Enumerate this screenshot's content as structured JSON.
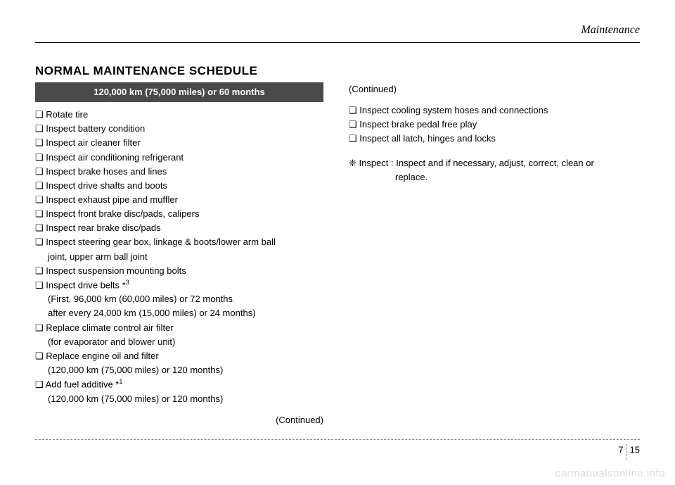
{
  "header": {
    "section": "Maintenance"
  },
  "title": "NORMAL MAINTENANCE SCHEDULE",
  "left": {
    "interval": "120,000 km (75,000 miles) or 60 months",
    "items": [
      {
        "text": "❑ Rotate tire"
      },
      {
        "text": "❑ Inspect battery condition"
      },
      {
        "text": "❑ Inspect air cleaner filter"
      },
      {
        "text": "❑ Inspect air conditioning refrigerant"
      },
      {
        "text": "❑ Inspect brake hoses and lines"
      },
      {
        "text": "❑ Inspect drive shafts and boots"
      },
      {
        "text": "❑ Inspect exhaust pipe and muffler"
      },
      {
        "text": "❑ Inspect front brake disc/pads, calipers"
      },
      {
        "text": "❑ Inspect rear brake disc/pads"
      },
      {
        "text": "❑ Inspect steering gear box, linkage & boots/lower arm ball"
      },
      {
        "text": "joint, upper arm ball joint",
        "sub": true
      },
      {
        "text": "❑ Inspect suspension mounting bolts"
      },
      {
        "text": "❑ Inspect drive belts *",
        "sup": "3"
      },
      {
        "text": "(First, 96,000 km (60,000 miles) or 72 months",
        "sub": true
      },
      {
        "text": " after every 24,000 km (15,000 miles) or 24 months)",
        "sub": true
      },
      {
        "text": "❑ Replace climate control air filter"
      },
      {
        "text": "(for evaporator and blower unit)",
        "sub": true
      },
      {
        "text": "❑ Replace engine oil and filter"
      },
      {
        "text": "(120,000 km (75,000 miles) or 120 months)",
        "sub": true
      },
      {
        "text": "❑ Add fuel additive *",
        "sup": "1"
      },
      {
        "text": "(120,000 km (75,000 miles) or 120 months)",
        "sub": true
      }
    ],
    "continued": "(Continued)"
  },
  "right": {
    "continued_top": "(Continued)",
    "items": [
      {
        "text": "❑ Inspect cooling system hoses and connections"
      },
      {
        "text": "❑ Inspect brake pedal free play"
      },
      {
        "text": "❑ Inspect all latch, hinges and locks"
      }
    ],
    "note_lead": "❈ Inspect : Inspect and if necessary, adjust, correct, clean or",
    "note_body": "replace."
  },
  "footer": {
    "chapter": "7",
    "page": "15"
  },
  "watermark": "carmanualsonline.info",
  "colors": {
    "header_bg": "#4a4a4a",
    "text": "#000000",
    "watermark": "#dddddd",
    "dash": "#888888"
  }
}
